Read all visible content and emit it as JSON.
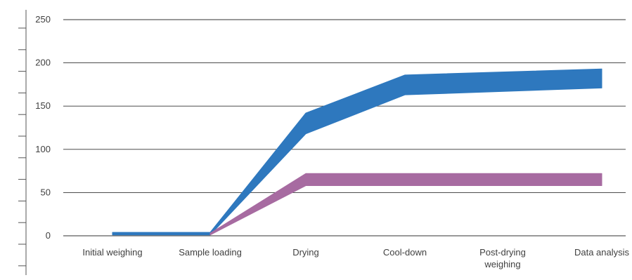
{
  "chart_data": {
    "type": "area",
    "title": "",
    "xlabel": "",
    "ylabel": "",
    "categories": [
      "Initial weighing",
      "Sample loading",
      "Drying",
      "Cool-down",
      "Post-drying weighing",
      "Data analysis"
    ],
    "category_lines": [
      [
        "Initial weighing"
      ],
      [
        "Sample loading"
      ],
      [
        "Drying"
      ],
      [
        "Cool-down"
      ],
      [
        "Post-drying",
        "weighing"
      ],
      [
        "Data analysis"
      ]
    ],
    "ylim": [
      0,
      250
    ],
    "yticks": [
      "0",
      "50",
      "100",
      "150",
      "200",
      "250"
    ],
    "grid": true,
    "legend": "none",
    "series": [
      {
        "color": "#2e78be",
        "x": [
          0,
          1,
          2,
          3,
          5
        ],
        "lower": [
          1,
          1,
          118,
          163,
          171
        ],
        "upper": [
          4,
          4,
          142,
          186,
          193
        ]
      },
      {
        "color": "#a76ba1",
        "x": [
          1,
          2,
          3,
          5
        ],
        "lower": [
          1,
          58,
          58,
          58
        ],
        "upper": [
          3,
          72,
          72,
          72
        ]
      }
    ]
  }
}
